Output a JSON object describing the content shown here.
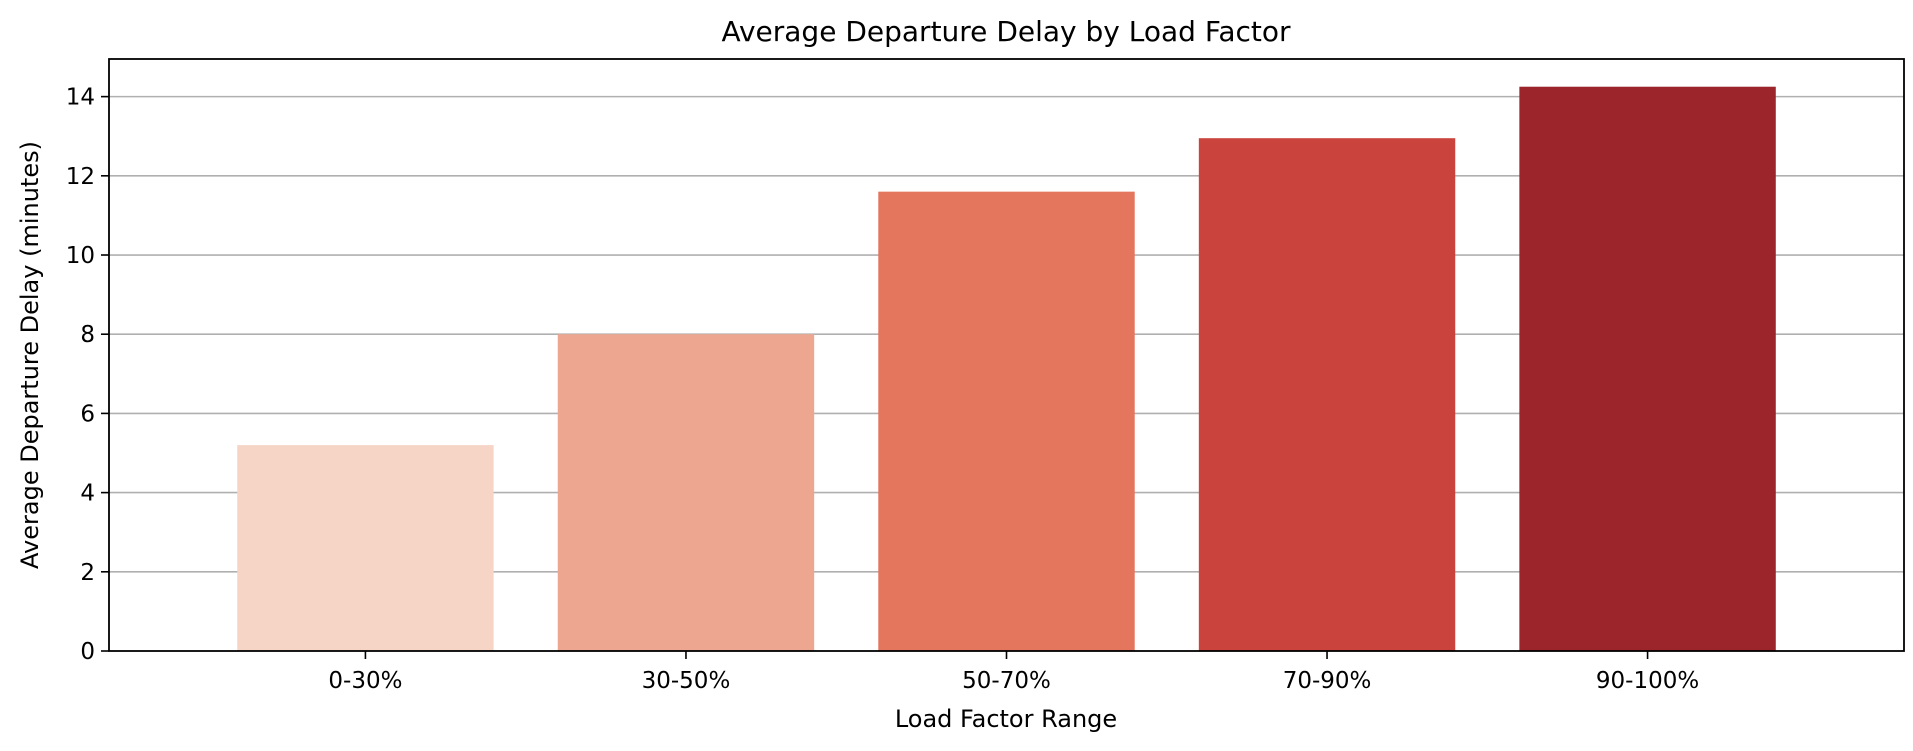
{
  "chart_data": {
    "type": "bar",
    "title": "Average Departure Delay by Load Factor",
    "xlabel": "Load Factor Range",
    "ylabel": "Average Departure Delay (minutes)",
    "categories": [
      "0-30%",
      "30-50%",
      "50-70%",
      "70-90%",
      "90-100%"
    ],
    "values": [
      5.2,
      8.0,
      11.6,
      12.95,
      14.25
    ],
    "colors": [
      "#f6d5c7",
      "#eda690",
      "#e5765e",
      "#ca433d",
      "#9b252a"
    ],
    "ylim": [
      0,
      14.95
    ],
    "yticks": [
      0,
      2,
      4,
      6,
      8,
      10,
      12,
      14
    ],
    "grid": "y",
    "legend": "none"
  }
}
